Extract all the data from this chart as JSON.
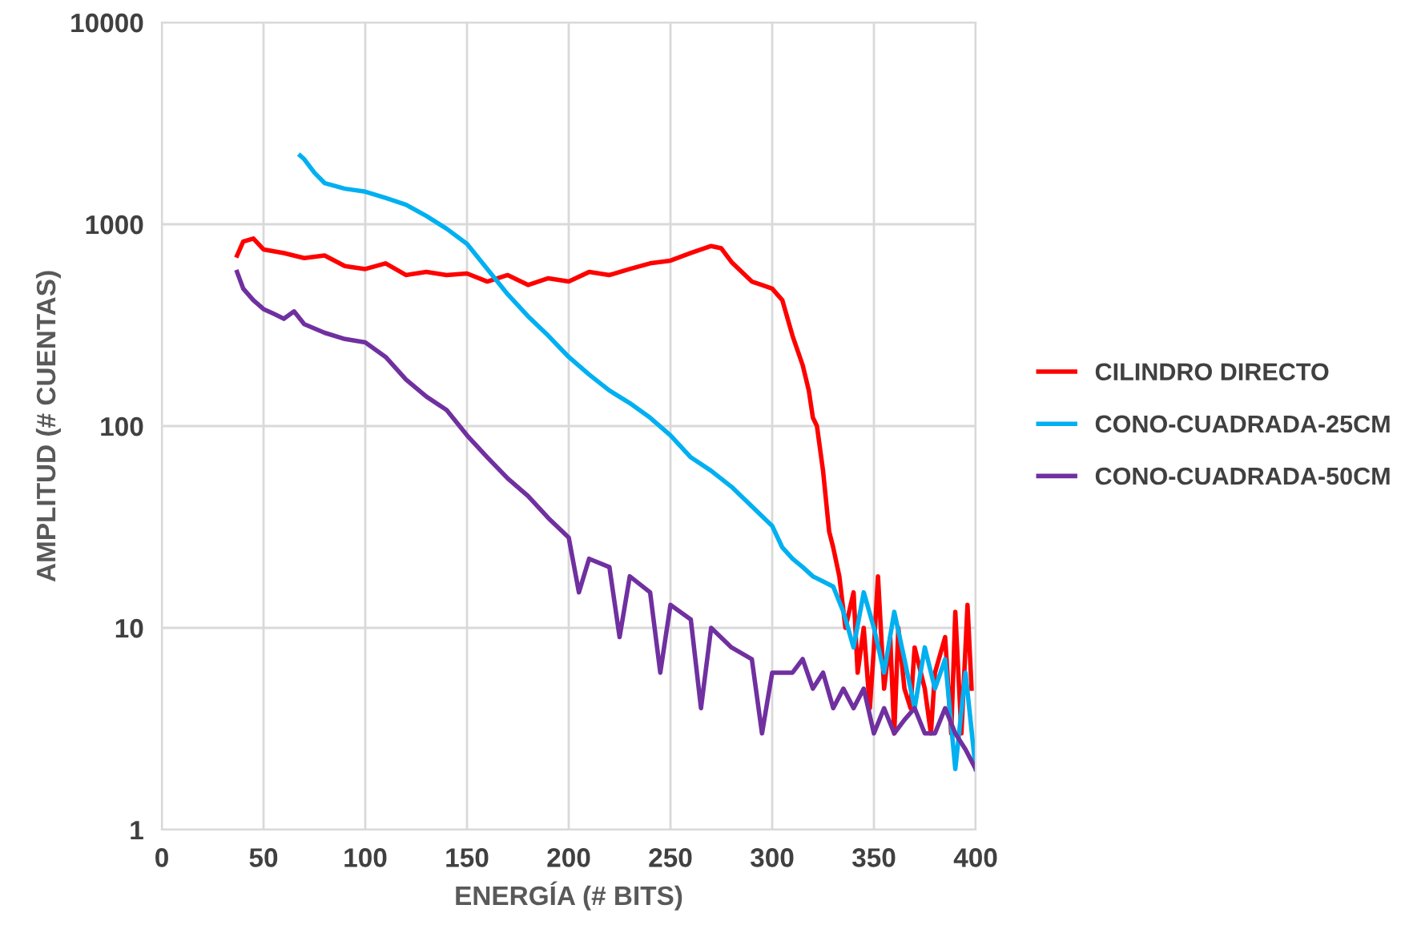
{
  "chart_data": {
    "type": "line",
    "xlabel": "ENERGÍA (# BITS)",
    "ylabel": "AMPLITUD (# CUENTAS)",
    "log": "y",
    "grid": true,
    "legend": "right",
    "xlim": [
      0,
      400
    ],
    "xticks": [
      0,
      50,
      100,
      150,
      200,
      250,
      300,
      350,
      400
    ],
    "ylim": [
      1,
      10000
    ],
    "yticks": [
      1,
      10,
      100,
      1000,
      10000
    ],
    "series": [
      {
        "name": "CILINDRO DIRECTO",
        "color": "#ff0000",
        "x": [
          37,
          40,
          45,
          50,
          60,
          70,
          80,
          90,
          100,
          110,
          120,
          130,
          140,
          150,
          160,
          170,
          180,
          190,
          200,
          210,
          220,
          230,
          240,
          250,
          260,
          270,
          275,
          280,
          290,
          295,
          300,
          305,
          310,
          315,
          318,
          320,
          322,
          325,
          328,
          330,
          333,
          336,
          340,
          342,
          345,
          348,
          350,
          352,
          355,
          358,
          360,
          362,
          365,
          368,
          370,
          375,
          378,
          380,
          385,
          388,
          390,
          393,
          396,
          398
        ],
        "values": [
          700,
          820,
          850,
          750,
          720,
          680,
          700,
          620,
          600,
          640,
          560,
          580,
          560,
          570,
          520,
          560,
          500,
          540,
          520,
          580,
          560,
          600,
          640,
          660,
          720,
          780,
          760,
          650,
          520,
          500,
          480,
          420,
          280,
          200,
          150,
          110,
          100,
          60,
          30,
          25,
          18,
          10,
          15,
          6,
          10,
          4,
          8,
          18,
          5,
          9,
          3,
          10,
          5,
          4,
          8,
          5,
          3,
          6,
          9,
          3,
          12,
          3,
          13,
          5
        ]
      },
      {
        "name": "CONO-CUADRADA-25CM",
        "color": "#00b0f0",
        "x": [
          68,
          70,
          75,
          80,
          90,
          100,
          110,
          120,
          130,
          140,
          150,
          160,
          170,
          180,
          190,
          200,
          210,
          220,
          230,
          240,
          250,
          260,
          270,
          280,
          290,
          300,
          305,
          310,
          315,
          320,
          325,
          330,
          335,
          340,
          345,
          350,
          355,
          360,
          365,
          370,
          375,
          380,
          385,
          390,
          395,
          400
        ],
        "values": [
          2190,
          2100,
          1800,
          1600,
          1500,
          1450,
          1350,
          1250,
          1100,
          950,
          800,
          600,
          450,
          350,
          280,
          220,
          180,
          150,
          130,
          110,
          90,
          70,
          60,
          50,
          40,
          32,
          25,
          22,
          20,
          18,
          17,
          16,
          12,
          8,
          15,
          10,
          6,
          12,
          7,
          4,
          8,
          5,
          7,
          2,
          6,
          2
        ]
      },
      {
        "name": "CONO-CUADRADA-50CM",
        "color": "#7030a0",
        "x": [
          37,
          40,
          45,
          50,
          55,
          60,
          65,
          70,
          80,
          90,
          100,
          110,
          120,
          130,
          140,
          150,
          160,
          170,
          180,
          190,
          200,
          205,
          210,
          220,
          225,
          230,
          240,
          245,
          250,
          260,
          265,
          270,
          280,
          290,
          295,
          300,
          305,
          310,
          315,
          320,
          325,
          330,
          335,
          340,
          345,
          350,
          355,
          360,
          365,
          370,
          375,
          380,
          385,
          390,
          395,
          400
        ],
        "values": [
          580,
          480,
          420,
          380,
          360,
          340,
          370,
          320,
          290,
          270,
          260,
          220,
          170,
          140,
          120,
          90,
          70,
          55,
          45,
          35,
          28,
          15,
          22,
          20,
          9,
          18,
          15,
          6,
          13,
          11,
          4,
          10,
          8,
          7,
          3,
          6,
          6,
          6,
          7,
          5,
          6,
          4,
          5,
          4,
          5,
          3,
          4,
          3,
          3.5,
          4,
          3,
          3,
          4,
          3,
          2.5,
          2
        ]
      }
    ]
  }
}
